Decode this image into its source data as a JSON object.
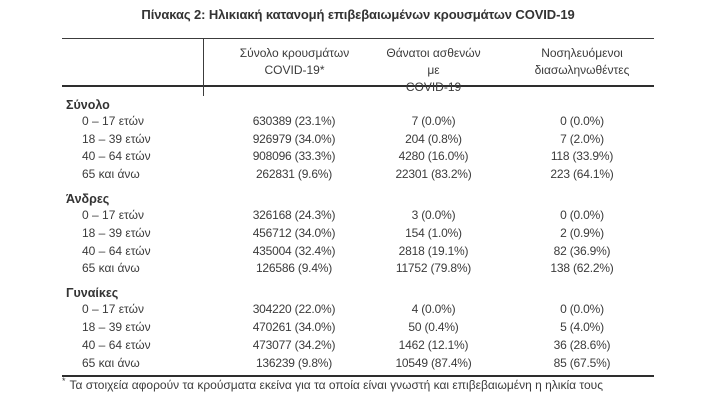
{
  "title": "Πίνακας 2: Ηλικιακή κατανομή επιβεβαιωμένων κρουσμάτων COVID-19",
  "table": {
    "columns": {
      "cases": {
        "line1": "Σύνολο κρουσμάτων",
        "line2": "COVID-19*"
      },
      "deaths": {
        "line1": "Θάνατοι ασθενών με",
        "line2": "COVID-19"
      },
      "intubated": {
        "line1": "Νοσηλευόμενοι",
        "line2": "διασωληνωθέντες"
      }
    },
    "groups": [
      {
        "label": "Σύνολο",
        "rows": [
          {
            "label": "0 – 17 ετών",
            "cases": "630389 (23.1%)",
            "deaths": "7 (0.0%)",
            "intubated": "0 (0.0%)"
          },
          {
            "label": "18 – 39 ετών",
            "cases": "926979 (34.0%)",
            "deaths": "204 (0.8%)",
            "intubated": "7 (2.0%)"
          },
          {
            "label": "40 – 64 ετών",
            "cases": "908096 (33.3%)",
            "deaths": "4280 (16.0%)",
            "intubated": "118 (33.9%)"
          },
          {
            "label": "65 και άνω",
            "cases": "262831 (9.6%)",
            "deaths": "22301 (83.2%)",
            "intubated": "223 (64.1%)"
          }
        ]
      },
      {
        "label": "Άνδρες",
        "rows": [
          {
            "label": "0 – 17 ετών",
            "cases": "326168 (24.3%)",
            "deaths": "3 (0.0%)",
            "intubated": "0 (0.0%)"
          },
          {
            "label": "18 – 39 ετών",
            "cases": "456712 (34.0%)",
            "deaths": "154 (1.0%)",
            "intubated": "2 (0.9%)"
          },
          {
            "label": "40 – 64 ετών",
            "cases": "435004 (32.4%)",
            "deaths": "2818 (19.1%)",
            "intubated": "82 (36.9%)"
          },
          {
            "label": "65 και άνω",
            "cases": "126586 (9.4%)",
            "deaths": "11752 (79.8%)",
            "intubated": "138 (62.2%)"
          }
        ]
      },
      {
        "label": "Γυναίκες",
        "rows": [
          {
            "label": "0 – 17 ετών",
            "cases": "304220 (22.0%)",
            "deaths": "4 (0.0%)",
            "intubated": "0 (0.0%)"
          },
          {
            "label": "18 – 39 ετών",
            "cases": "470261 (34.0%)",
            "deaths": "50 (0.4%)",
            "intubated": "5 (4.0%)"
          },
          {
            "label": "40 – 64 ετών",
            "cases": "473077 (34.2%)",
            "deaths": "1462 (12.1%)",
            "intubated": "36 (28.6%)"
          },
          {
            "label": "65 και άνω",
            "cases": "136239 (9.8%)",
            "deaths": "10549 (87.4%)",
            "intubated": "85 (67.5%)"
          }
        ]
      }
    ]
  },
  "footnote": {
    "marker": "*",
    "text": "Τα στοιχεία αφορούν τα κρούσματα εκείνα για τα οποία είναι γνωστή και επιβεβαιωμένη η ηλικία τους"
  }
}
